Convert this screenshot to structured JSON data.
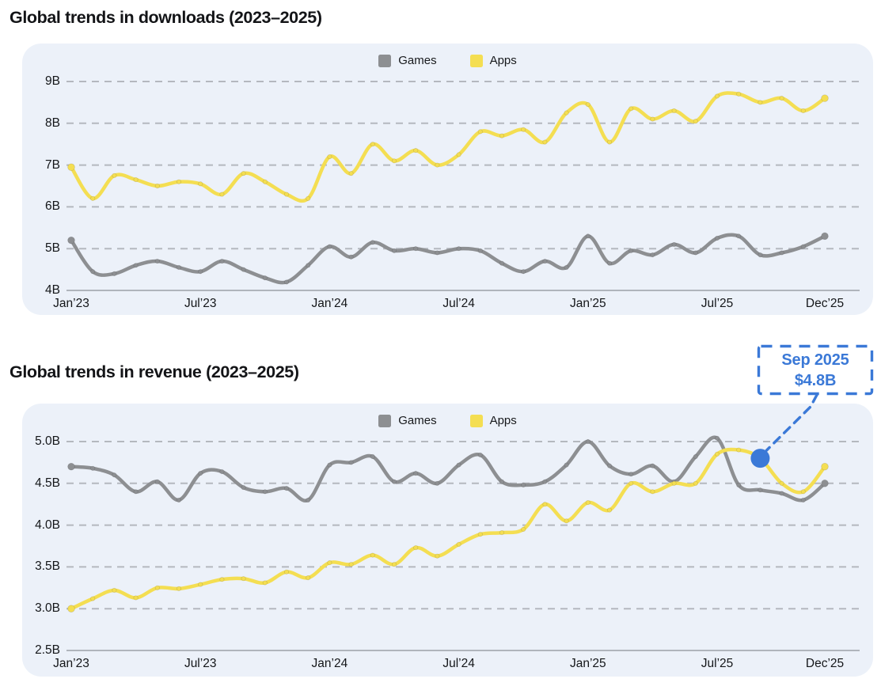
{
  "chart_data": [
    {
      "type": "line",
      "title": "Global trends in downloads (2023–2025)",
      "legend_position": "top-center",
      "grid": "horizontal-dashed",
      "x_unit": "month",
      "x_tick_labels": [
        "Jan’23",
        "Jul’23",
        "Jan’24",
        "Jul’24",
        "Jan’25",
        "Jul’25",
        "Dec’25"
      ],
      "x_tick_month_index": [
        0,
        6,
        12,
        18,
        24,
        30,
        35
      ],
      "y_tick_labels": [
        "9B",
        "8B",
        "7B",
        "6B",
        "5B",
        "4B"
      ],
      "ylim": [
        4,
        9
      ],
      "series": [
        {
          "name": "Games",
          "color": "#8d8f92",
          "values": [
            5.2,
            4.45,
            4.4,
            4.6,
            4.7,
            4.55,
            4.45,
            4.7,
            4.5,
            4.3,
            4.2,
            4.6,
            5.05,
            4.8,
            5.15,
            4.95,
            5.0,
            4.9,
            5.0,
            4.95,
            4.65,
            4.45,
            4.7,
            4.55,
            5.3,
            4.65,
            4.95,
            4.85,
            5.1,
            4.9,
            5.25,
            5.3,
            4.85,
            4.9,
            5.05,
            5.3
          ]
        },
        {
          "name": "Apps",
          "color": "#f4de52",
          "values": [
            6.95,
            6.2,
            6.75,
            6.65,
            6.5,
            6.6,
            6.55,
            6.3,
            6.8,
            6.6,
            6.3,
            6.2,
            7.2,
            6.8,
            7.5,
            7.1,
            7.35,
            7.0,
            7.25,
            7.8,
            7.7,
            7.85,
            7.55,
            8.25,
            8.45,
            7.55,
            8.35,
            8.1,
            8.3,
            8.05,
            8.65,
            8.7,
            8.5,
            8.6,
            8.3,
            8.6
          ]
        }
      ]
    },
    {
      "type": "line",
      "title": "Global trends in revenue (2023–2025)",
      "legend_position": "top-center",
      "grid": "horizontal-dashed",
      "x_unit": "month",
      "x_tick_labels": [
        "Jan’23",
        "Jul’23",
        "Jan’24",
        "Jul’24",
        "Jan’25",
        "Jul’25",
        "Dec’25"
      ],
      "x_tick_month_index": [
        0,
        6,
        12,
        18,
        24,
        30,
        35
      ],
      "y_tick_labels": [
        "5.0B",
        "4.5B",
        "4.0B",
        "3.5B",
        "3.0B",
        "2.5B"
      ],
      "ylim": [
        2.5,
        5
      ],
      "series": [
        {
          "name": "Games",
          "color": "#8d8f92",
          "values": [
            4.7,
            4.68,
            4.6,
            4.4,
            4.52,
            4.3,
            4.62,
            4.64,
            4.45,
            4.4,
            4.44,
            4.3,
            4.72,
            4.75,
            4.82,
            4.52,
            4.62,
            4.5,
            4.72,
            4.84,
            4.52,
            4.48,
            4.52,
            4.72,
            5.0,
            4.71,
            4.61,
            4.71,
            4.52,
            4.82,
            5.04,
            4.48,
            4.42,
            4.38,
            4.3,
            4.5
          ]
        },
        {
          "name": "Apps",
          "color": "#f4de52",
          "values": [
            3.0,
            3.12,
            3.22,
            3.13,
            3.25,
            3.24,
            3.29,
            3.35,
            3.36,
            3.31,
            3.44,
            3.37,
            3.55,
            3.53,
            3.64,
            3.53,
            3.73,
            3.63,
            3.77,
            3.89,
            3.91,
            3.95,
            4.25,
            4.05,
            4.27,
            4.18,
            4.5,
            4.4,
            4.5,
            4.5,
            4.85,
            4.9,
            4.8,
            4.5,
            4.4,
            4.7
          ]
        }
      ],
      "annotation": {
        "label_line1": "Sep 2025",
        "label_line2": "$4.8B",
        "series": "Apps",
        "month_index": 32,
        "value": 4.8,
        "color": "#3b79d7"
      }
    }
  ]
}
